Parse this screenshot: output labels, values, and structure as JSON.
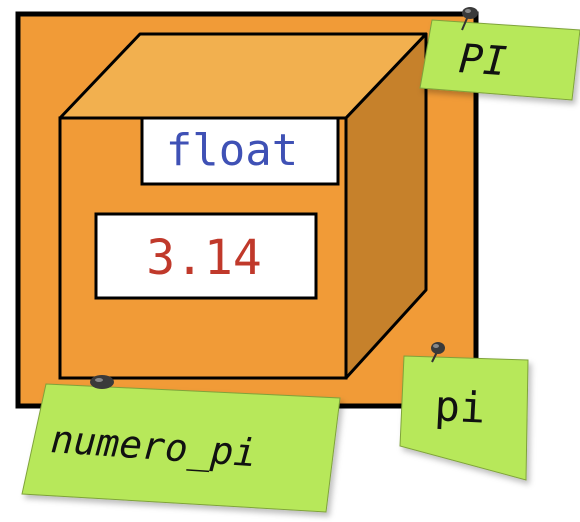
{
  "box": {
    "type_label": "float",
    "value": "3.14"
  },
  "notes": [
    {
      "id": "pi-upper",
      "text": "PI"
    },
    {
      "id": "pi-lower",
      "text": "pi"
    },
    {
      "id": "numero-pi",
      "text": "numero_pi"
    }
  ],
  "colors": {
    "frame_fill": "#F19B37",
    "box_front": "#F19B37",
    "box_top": "#F2B04F",
    "box_side": "#C6812B",
    "note_fill": "#B7E85A",
    "type_text": "#3F51B5",
    "value_text": "#C0392B",
    "outline": "#000000"
  }
}
